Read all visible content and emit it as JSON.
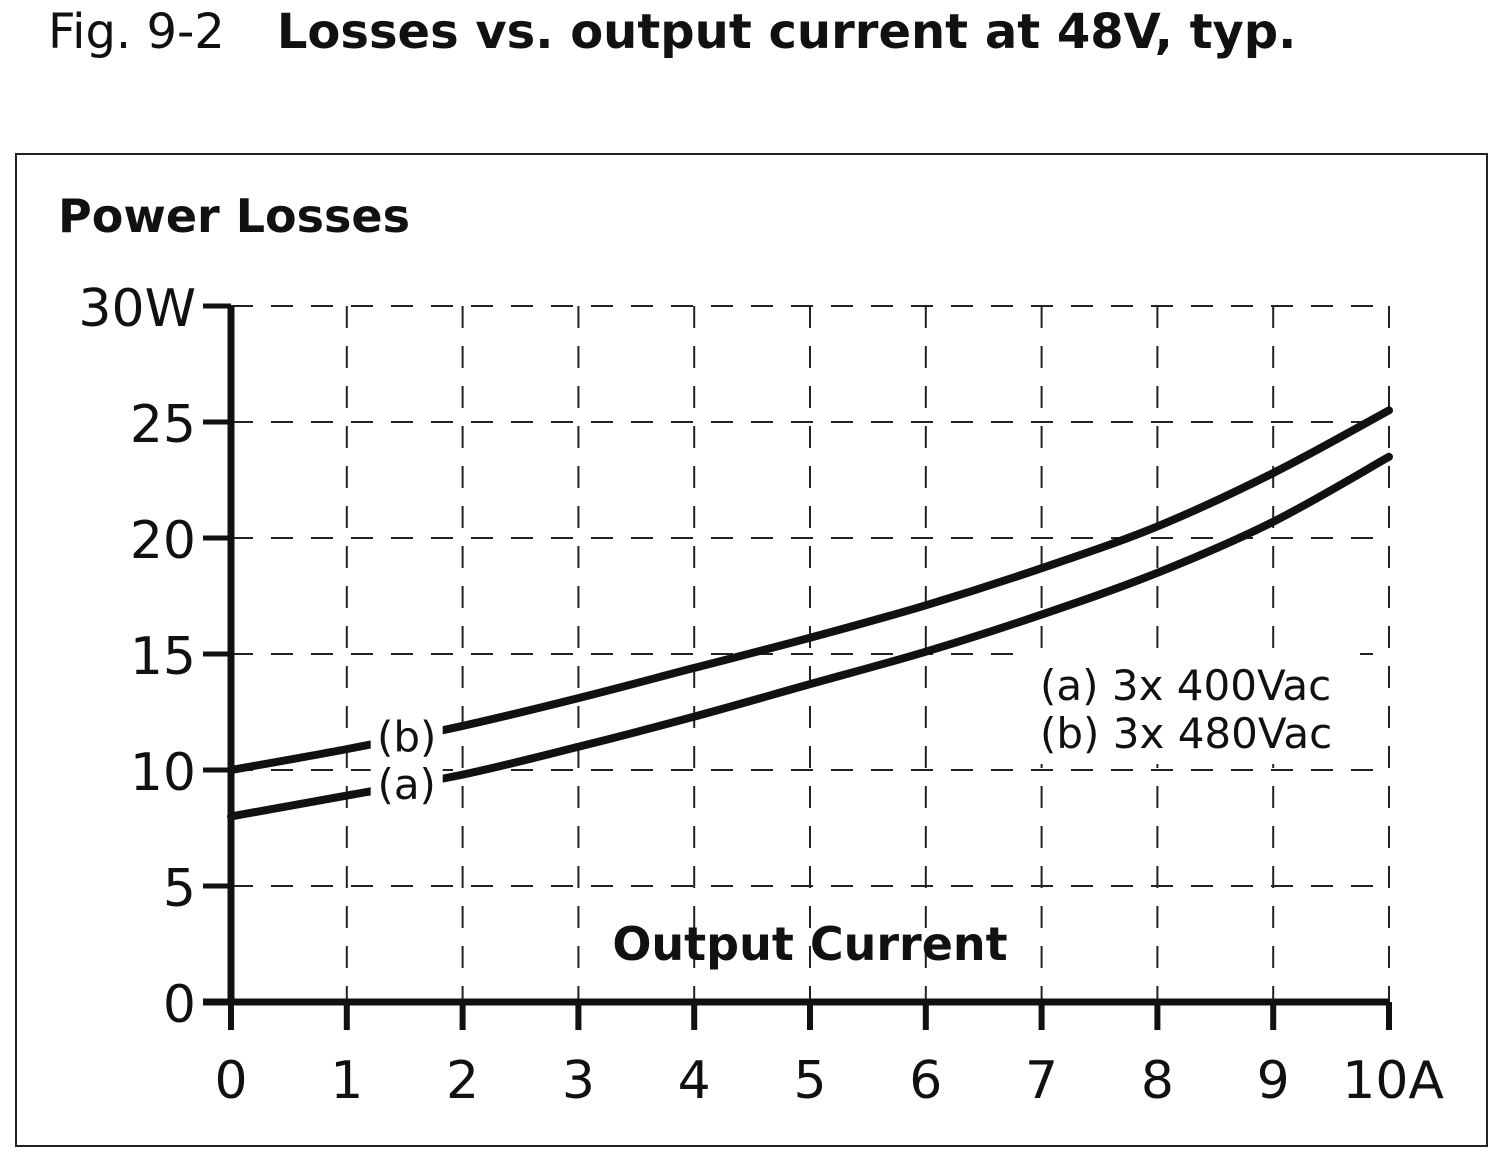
{
  "caption": {
    "figure_number": "Fig. 9-2",
    "title": "Losses vs. output current at 48V, typ."
  },
  "chart_data": {
    "type": "line",
    "ylabel": "Power Losses",
    "xlabel": "Output Current",
    "xlim": [
      0,
      10
    ],
    "ylim": [
      0,
      30
    ],
    "grid": true,
    "x_tick_labels": [
      "0",
      "1",
      "2",
      "3",
      "4",
      "5",
      "6",
      "7",
      "8",
      "9",
      "10A"
    ],
    "y_tick_labels": [
      "0",
      "5",
      "10",
      "15",
      "20",
      "25",
      "30W"
    ],
    "x": [
      0,
      1,
      2,
      3,
      4,
      5,
      6,
      7,
      8,
      9,
      10
    ],
    "series": [
      {
        "name": "(a) 3x 400Vac",
        "label": "(a)",
        "values": [
          8.0,
          8.9,
          9.8,
          11.0,
          12.3,
          13.7,
          15.1,
          16.7,
          18.5,
          20.7,
          23.5
        ]
      },
      {
        "name": "(b) 3x 480Vac",
        "label": "(b)",
        "values": [
          10.0,
          10.9,
          11.9,
          13.1,
          14.4,
          15.7,
          17.1,
          18.7,
          20.5,
          22.8,
          25.5
        ]
      }
    ],
    "legend": {
      "position": "right",
      "entries": [
        "(a) 3x 400Vac",
        "(b) 3x 480Vac"
      ]
    }
  }
}
